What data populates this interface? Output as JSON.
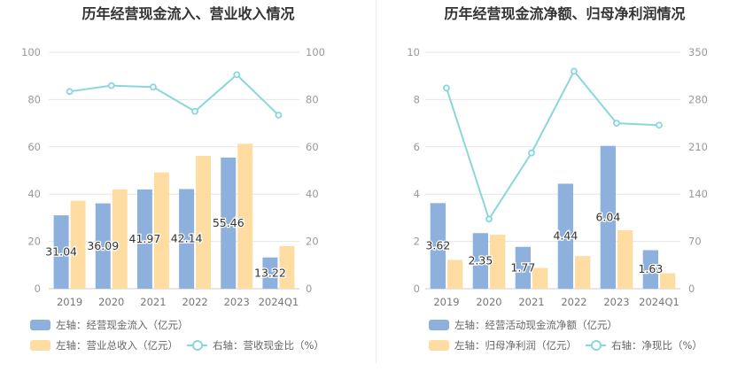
{
  "colors": {
    "bar_primary": "#8eb0dd",
    "bar_secondary": "#ffdca1",
    "line": "#8ad7db",
    "grid": "#e6e6e6",
    "tick": "#999999",
    "label": "#333333"
  },
  "chart_data": [
    {
      "type": "bar",
      "title": "历年经营现金流入、营业收入情况",
      "categories": [
        "2019",
        "2020",
        "2021",
        "2022",
        "2023",
        "2024Q1"
      ],
      "left_axis": {
        "ylim": [
          0,
          100
        ],
        "ticks": [
          "0",
          "20",
          "40",
          "60",
          "80",
          "100"
        ]
      },
      "right_axis": {
        "ylim": [
          0,
          100
        ],
        "ticks": [
          "0",
          "20",
          "40",
          "60",
          "80",
          "100"
        ]
      },
      "series": [
        {
          "name": "左轴：经营现金流入（亿元）",
          "type": "bar",
          "axis": "left",
          "values": [
            31.04,
            36.09,
            41.97,
            42.14,
            55.46,
            13.22
          ],
          "data_labels": [
            "31.04",
            "36.09",
            "41.97",
            "42.14",
            "55.46",
            "13.22"
          ]
        },
        {
          "name": "左轴：营业总收入（亿元）",
          "type": "bar",
          "axis": "left",
          "values": [
            37.2,
            42.0,
            49.2,
            56.2,
            61.3,
            18.0
          ]
        },
        {
          "name": "右轴：营收现金比（%）",
          "type": "line",
          "axis": "right",
          "values": [
            83.4,
            85.9,
            85.3,
            75.0,
            90.5,
            73.4
          ]
        }
      ],
      "legend_rows": [
        [
          "左轴：经营现金流入（亿元）"
        ],
        [
          "左轴：营业总收入（亿元）",
          "右轴：营收现金比（%）"
        ]
      ]
    },
    {
      "type": "bar",
      "title": "历年经营现金流净额、归母净利润情况",
      "categories": [
        "2019",
        "2020",
        "2021",
        "2022",
        "2023",
        "2024Q1"
      ],
      "left_axis": {
        "ylim": [
          0,
          10
        ],
        "ticks": [
          "0",
          "2",
          "4",
          "6",
          "8",
          "10"
        ]
      },
      "right_axis": {
        "ylim": [
          0,
          350
        ],
        "ticks": [
          "0",
          "70",
          "140",
          "210",
          "280",
          "350"
        ]
      },
      "series": [
        {
          "name": "左轴：经营活动现金流净额（亿元）",
          "type": "bar",
          "axis": "left",
          "values": [
            3.62,
            2.35,
            1.77,
            4.44,
            6.04,
            1.63
          ],
          "data_labels": [
            "3.62",
            "2.35",
            "1.77",
            "4.44",
            "6.04",
            "1.63"
          ]
        },
        {
          "name": "左轴：归母净利润（亿元）",
          "type": "bar",
          "axis": "left",
          "values": [
            1.22,
            2.28,
            0.88,
            1.38,
            2.47,
            0.66
          ]
        },
        {
          "name": "右轴：净现比（%）",
          "type": "line",
          "axis": "right",
          "values": [
            297,
            103,
            201,
            322,
            245,
            242
          ]
        }
      ],
      "legend_rows": [
        [
          "左轴：经营活动现金流净额（亿元）"
        ],
        [
          "左轴：归母净利润（亿元）",
          "右轴：净现比（%）"
        ]
      ]
    }
  ]
}
